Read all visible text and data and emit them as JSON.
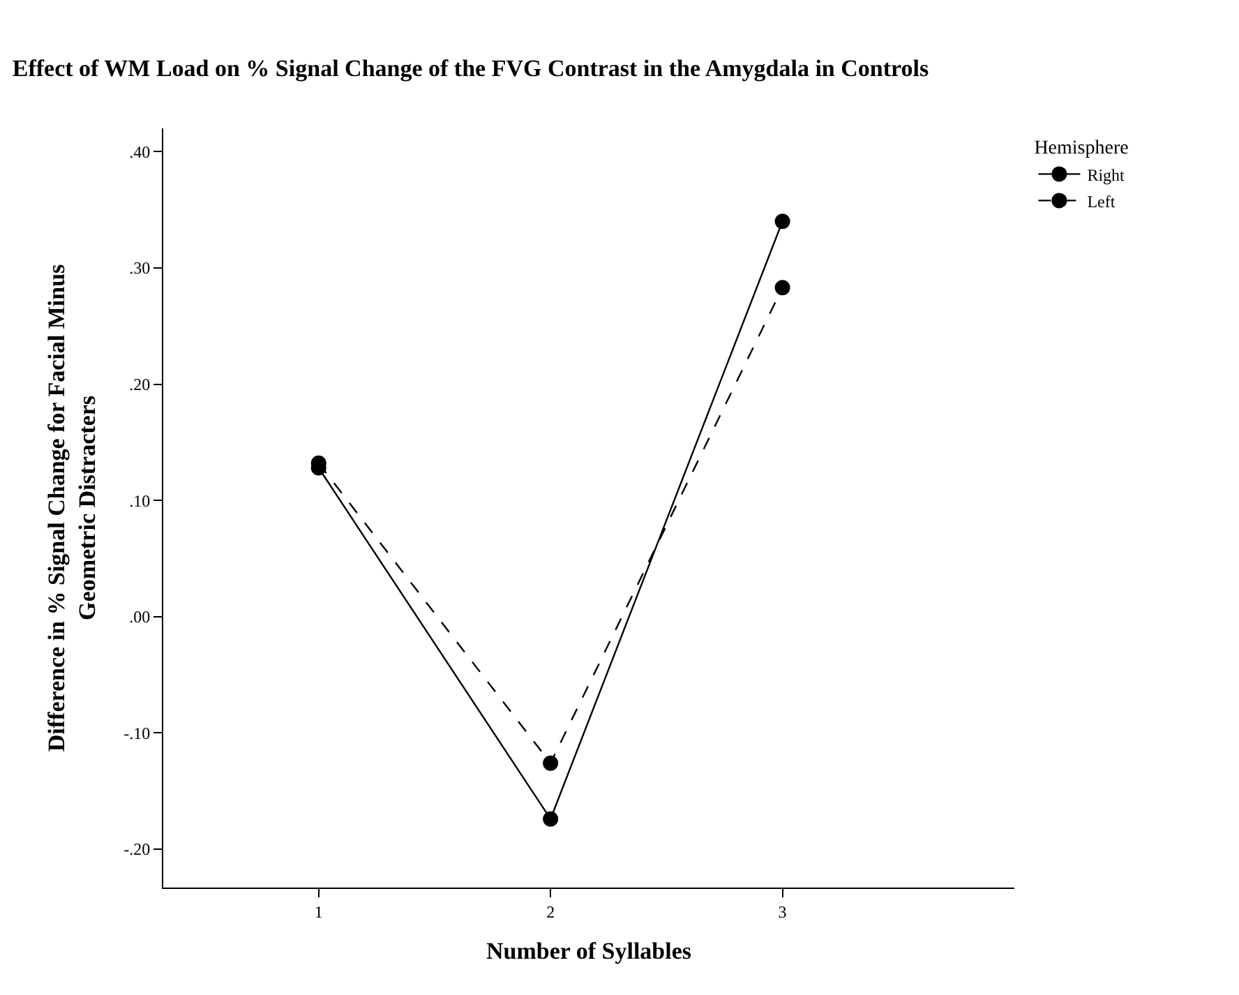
{
  "chart_data": {
    "type": "line",
    "title": "Effect of WM Load on % Signal Change of the FVG Contrast in the Amygdala in Controls",
    "xlabel": "Number of Syllables",
    "ylabel": "Difference in % Signal Change for Facial Minus\nGeometric Distracters",
    "legend_title": "Hemisphere",
    "legend": "top right",
    "marker": "circle",
    "x": [
      1,
      2,
      3
    ],
    "xlim": [
      0.33,
      4.0
    ],
    "xticks": [
      1,
      2,
      3
    ],
    "ylim": [
      -0.233,
      0.42
    ],
    "yticks": [
      {
        "value": -0.2,
        "label": "-.20"
      },
      {
        "value": -0.1,
        "label": "-.10"
      },
      {
        "value": 0,
        "label": ".00"
      },
      {
        "value": 0.1,
        "label": ".10"
      },
      {
        "value": 0.2,
        "label": ".20"
      },
      {
        "value": 0.3,
        "label": ".30"
      },
      {
        "value": 0.4,
        "label": ".40"
      }
    ],
    "series": [
      {
        "name": "Right",
        "color": "#000000",
        "line_style": "solid",
        "values": [
          0.128,
          -0.174,
          0.34
        ]
      },
      {
        "name": "Left",
        "color": "#000000",
        "line_style": "dashed",
        "values": [
          0.132,
          -0.126,
          0.283
        ]
      }
    ]
  }
}
